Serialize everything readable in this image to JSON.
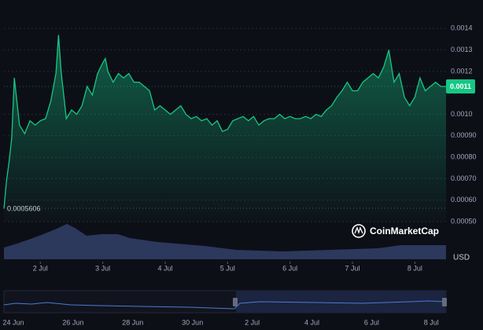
{
  "chart_data": {
    "type": "line",
    "x": [
      0,
      1,
      2,
      3,
      4,
      6,
      8,
      10,
      12,
      14,
      16,
      18,
      20,
      21,
      22,
      24,
      26,
      28,
      30,
      32,
      34,
      36,
      38,
      39,
      40,
      42,
      44,
      46,
      48,
      50,
      52,
      54,
      56,
      58,
      60,
      62,
      64,
      66,
      68,
      70,
      72,
      74,
      76,
      78,
      80,
      82,
      84,
      86,
      88,
      90,
      92,
      94,
      96,
      98,
      100,
      102,
      104,
      106,
      108,
      110,
      112,
      114,
      116,
      118,
      120,
      122,
      124,
      126,
      128,
      130,
      132,
      134,
      136,
      138,
      140,
      142,
      144,
      146,
      148,
      150,
      152,
      154,
      156,
      158,
      160,
      162,
      164,
      166,
      168,
      170
    ],
    "series": [
      {
        "color": "#16c784",
        "values": [
          0.00056,
          0.00069,
          0.00078,
          0.00089,
          0.00117,
          0.00095,
          0.00091,
          0.00097,
          0.00095,
          0.00097,
          0.00098,
          0.00106,
          0.00119,
          0.00137,
          0.0012,
          0.00098,
          0.00102,
          0.001,
          0.00104,
          0.00113,
          0.00109,
          0.00119,
          0.00124,
          0.00126,
          0.0012,
          0.00115,
          0.00119,
          0.00117,
          0.00119,
          0.00115,
          0.00115,
          0.00113,
          0.00111,
          0.00102,
          0.00104,
          0.00102,
          0.001,
          0.00102,
          0.00104,
          0.001,
          0.00098,
          0.00099,
          0.00097,
          0.00098,
          0.00095,
          0.00097,
          0.00092,
          0.00093,
          0.00097,
          0.00098,
          0.00099,
          0.00097,
          0.00099,
          0.00095,
          0.00097,
          0.00098,
          0.00098,
          0.001,
          0.00098,
          0.00099,
          0.00098,
          0.00098,
          0.00099,
          0.00098,
          0.001,
          0.00099,
          0.00102,
          0.00104,
          0.00108,
          0.00111,
          0.00115,
          0.00111,
          0.00111,
          0.00115,
          0.00117,
          0.00119,
          0.00117,
          0.00122,
          0.0013,
          0.00115,
          0.00119,
          0.00108,
          0.00104,
          0.00108,
          0.00117,
          0.00111,
          0.00113,
          0.00115,
          0.00113,
          0.00113
        ]
      }
    ],
    "xlim": [
      0,
      170
    ],
    "xticks": [
      {
        "value": 14,
        "label": "2 Jul"
      },
      {
        "value": 38,
        "label": "3 Jul"
      },
      {
        "value": 62,
        "label": "4 Jul"
      },
      {
        "value": 86,
        "label": "5 Jul"
      },
      {
        "value": 110,
        "label": "6 Jul"
      },
      {
        "value": 134,
        "label": "7 Jul"
      },
      {
        "value": 158,
        "label": "8 Jul"
      }
    ],
    "ylim": [
      0.0005,
      0.0015
    ],
    "yticks": [
      0.0014,
      0.0013,
      0.0012,
      {
        "value": 0.001,
        "label": "0.0010"
      },
      {
        "value": 0.0009,
        "label": "0.00090"
      },
      {
        "value": 0.0008,
        "label": "0.00080"
      },
      {
        "value": 0.0007,
        "label": "0.00070"
      },
      {
        "value": 0.0006,
        "label": "0.00060"
      },
      {
        "value": 0.0005,
        "label": "0.00050"
      }
    ],
    "grid": true,
    "last_value_label": "0.0011",
    "min_label": "0.0005606",
    "currency": "USD",
    "brand": "CoinMarketCap",
    "navigator_labels": [
      "24 Jun",
      "26 Jun",
      "28 Jun",
      "30 Jun",
      "2 Jul",
      "4 Jul",
      "6 Jul",
      "8 Jul"
    ]
  }
}
